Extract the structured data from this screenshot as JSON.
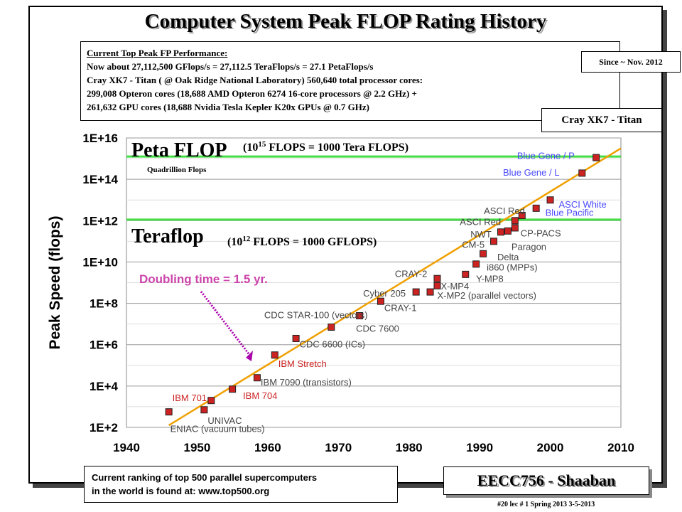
{
  "slide": {
    "title": "Computer System Peak FLOP Rating History"
  },
  "info_box": {
    "heading": "Current Top Peak FP Performance:",
    "lines": [
      "Now about  27,112,500 GFlops/s = 27,112.5  TeraFlops/s = 27.1 PetaFlops/s",
      "Cray XK7 - Titan ( @ Oak Ridge National Laboratory) 560,640 total processor cores:",
      "299,008 Opteron cores (18,688 AMD Opteron 6274 16-core processors @ 2.2 GHz) +",
      "261,632 GPU cores (18,688 Nvidia Tesla Kepler K20x GPUs @ 0.7 GHz)"
    ]
  },
  "since_label": "Since ~ Nov. 2012",
  "titan_label": "Cray XK7 - Titan",
  "ranking": {
    "line1": "Current ranking of top 500 parallel supercomputers",
    "line2": "in the world is found at:  www.top500.org"
  },
  "course": "EECC756 - Shaaban",
  "footer": "#20   lec # 1    Spring 2013   3-5-2013",
  "colors": {
    "marker": "#cc2222",
    "trend": "#f0a000",
    "threshold": "#44dd44",
    "doubling_text": "#cc44aa",
    "arrow": "#aa00aa",
    "blue_label": "#4a4aff"
  },
  "chart_data": {
    "type": "scatter",
    "xlabel": "",
    "ylabel": "Peak Speed (flops)",
    "x_scale": "linear",
    "y_scale": "log",
    "xlim": [
      1940,
      2010
    ],
    "ylim_exponent": [
      2,
      16
    ],
    "x_ticks": [
      "1940",
      "1950",
      "1960",
      "1970",
      "1980",
      "1990",
      "2000",
      "2010"
    ],
    "y_ticks": [
      "1E+2",
      "1E+4",
      "1E+6",
      "1E+8",
      "1E+10",
      "1E+12",
      "1E+14",
      "1E+16"
    ],
    "grid": "horizontal",
    "thresholds": [
      {
        "label": "Peta FLOP",
        "note": "(10",
        "sup": "15",
        "note_rest": " FLOPS = 1000 Tera FLOPS)",
        "sub_label": "Quadrillion Flops",
        "exponent": 15.1
      },
      {
        "label": "Teraflop",
        "note": "(10",
        "sup": "12",
        "note_rest": " FLOPS = 1000 GFLOPS)",
        "sub_label": "",
        "exponent": 12.05
      }
    ],
    "trend_label": "Doubling time = 1.5 yr.",
    "trend_line": {
      "x": [
        1946,
        2010
      ],
      "exponent": [
        2.1,
        15.5
      ]
    },
    "points": [
      {
        "year": 1946,
        "exponent": 2.75
      },
      {
        "year": 1951,
        "exponent": 2.85
      },
      {
        "year": 1952,
        "exponent": 3.3
      },
      {
        "year": 1955,
        "exponent": 3.85
      },
      {
        "year": 1958.5,
        "exponent": 4.4
      },
      {
        "year": 1961,
        "exponent": 5.5
      },
      {
        "year": 1964,
        "exponent": 6.3
      },
      {
        "year": 1969,
        "exponent": 6.85
      },
      {
        "year": 1973,
        "exponent": 7.4
      },
      {
        "year": 1976,
        "exponent": 8.1
      },
      {
        "year": 1981,
        "exponent": 8.55
      },
      {
        "year": 1983,
        "exponent": 8.55
      },
      {
        "year": 1984,
        "exponent": 8.85
      },
      {
        "year": 1984,
        "exponent": 9.2
      },
      {
        "year": 1988,
        "exponent": 9.4
      },
      {
        "year": 1989.5,
        "exponent": 9.9
      },
      {
        "year": 1990.5,
        "exponent": 10.4
      },
      {
        "year": 1992,
        "exponent": 11.0
      },
      {
        "year": 1993,
        "exponent": 11.45
      },
      {
        "year": 1994,
        "exponent": 11.5
      },
      {
        "year": 1995,
        "exponent": 11.65
      },
      {
        "year": 1995,
        "exponent": 12.0
      },
      {
        "year": 1996,
        "exponent": 12.25
      },
      {
        "year": 1998,
        "exponent": 12.6
      },
      {
        "year": 2000,
        "exponent": 13.0
      },
      {
        "year": 2004.5,
        "exponent": 14.3
      },
      {
        "year": 2006.5,
        "exponent": 15.05
      }
    ],
    "annotations": [
      {
        "text": "ENIAC (vacuum tubes)",
        "year": 1946.2,
        "exponent": 1.95,
        "color": "gray"
      },
      {
        "text": "UNIVAC",
        "year": 1951.5,
        "exponent": 2.35,
        "color": "gray"
      },
      {
        "text": "IBM 701",
        "year": 1946.5,
        "exponent": 3.45,
        "color": "red"
      },
      {
        "text": "IBM 704",
        "year": 1956.5,
        "exponent": 3.55,
        "color": "red"
      },
      {
        "text": "IBM 7090 (transistors)",
        "year": 1959,
        "exponent": 4.2,
        "color": "gray"
      },
      {
        "text": "IBM Stretch",
        "year": 1961.5,
        "exponent": 5.1,
        "color": "red"
      },
      {
        "text": "CDC 6600 (ICs)",
        "year": 1964.5,
        "exponent": 6.05,
        "color": "gray"
      },
      {
        "text": "CDC 7600",
        "year": 1972.5,
        "exponent": 6.8,
        "color": "gray"
      },
      {
        "text": "CDC STAR-100 (vectors)",
        "year": 1959.5,
        "exponent": 7.45,
        "color": "gray"
      },
      {
        "text": "CRAY-1",
        "year": 1976.5,
        "exponent": 7.8,
        "color": "gray"
      },
      {
        "text": "Cyber 205",
        "year": 1973.5,
        "exponent": 8.5,
        "color": "gray"
      },
      {
        "text": "X-MP2 (parallel vectors)",
        "year": 1984,
        "exponent": 8.4,
        "color": "gray"
      },
      {
        "text": "X-MP4",
        "year": 1984.5,
        "exponent": 8.85,
        "color": "gray"
      },
      {
        "text": "CRAY-2",
        "year": 1978,
        "exponent": 9.45,
        "color": "gray"
      },
      {
        "text": "Y-MP8",
        "year": 1989.5,
        "exponent": 9.2,
        "color": "gray"
      },
      {
        "text": "i860 (MPPs)",
        "year": 1991,
        "exponent": 9.75,
        "color": "gray"
      },
      {
        "text": "Delta",
        "year": 1992.5,
        "exponent": 10.25,
        "color": "gray"
      },
      {
        "text": "CM-5",
        "year": 1987.5,
        "exponent": 10.85,
        "color": "gray"
      },
      {
        "text": "Paragon",
        "year": 1994.5,
        "exponent": 10.75,
        "color": "gray"
      },
      {
        "text": "NWT",
        "year": 1988.7,
        "exponent": 11.35,
        "color": "gray"
      },
      {
        "text": "CP-PACS",
        "year": 1995.8,
        "exponent": 11.4,
        "color": "gray"
      },
      {
        "text": "ASCI Red",
        "year": 1987.2,
        "exponent": 11.95,
        "color": "gray"
      },
      {
        "text": "ASCI Red",
        "year": 1990.6,
        "exponent": 12.5,
        "color": "gray"
      },
      {
        "text": "ASCI White",
        "year": 2001.2,
        "exponent": 12.8,
        "color": "blue"
      },
      {
        "text": "Blue Pacific",
        "year": 1999.3,
        "exponent": 12.4,
        "color": "blue"
      },
      {
        "text": "Blue Gene / L",
        "year": 1993.3,
        "exponent": 14.35,
        "color": "blue"
      },
      {
        "text": "Blue Gene / P",
        "year": 1995.3,
        "exponent": 15.15,
        "color": "blue"
      }
    ]
  }
}
